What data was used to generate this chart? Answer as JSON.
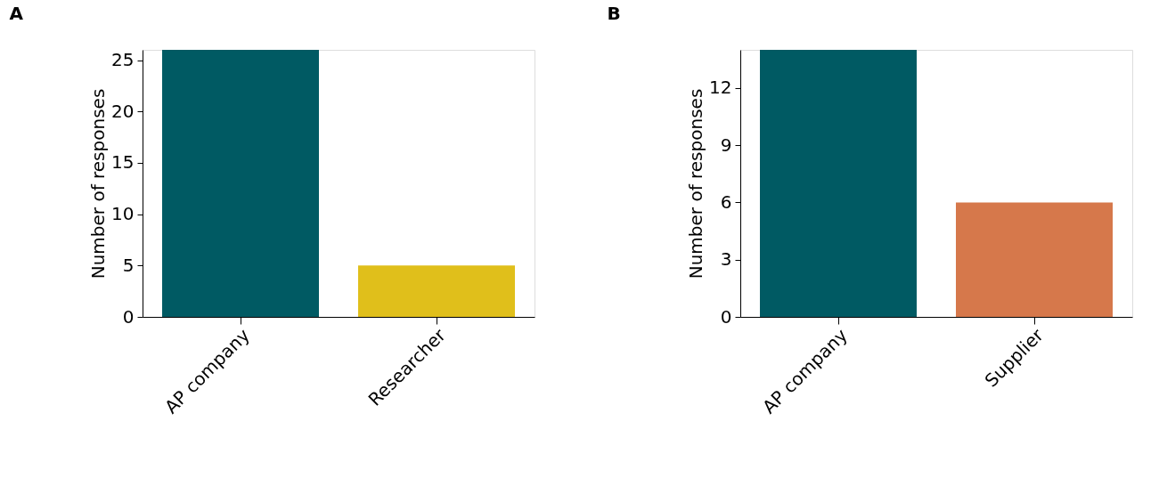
{
  "chart_data": [
    {
      "type": "bar",
      "title": "A",
      "categories": [
        "AP company",
        "Researcher"
      ],
      "values": [
        26,
        5
      ],
      "colors": [
        "#005a63",
        "#e0bf1b"
      ],
      "ylabel": "Number of responses",
      "ylim": [
        0,
        26
      ],
      "yticks": [
        0,
        5,
        10,
        15,
        20,
        25
      ],
      "grid": false
    },
    {
      "type": "bar",
      "title": "B",
      "categories": [
        "AP company",
        "Supplier"
      ],
      "values": [
        14,
        6
      ],
      "colors": [
        "#005a63",
        "#d6784b"
      ],
      "ylabel": "Number of responses",
      "ylim": [
        0,
        14
      ],
      "yticks": [
        0,
        3,
        6,
        9,
        12
      ],
      "grid": false
    }
  ]
}
